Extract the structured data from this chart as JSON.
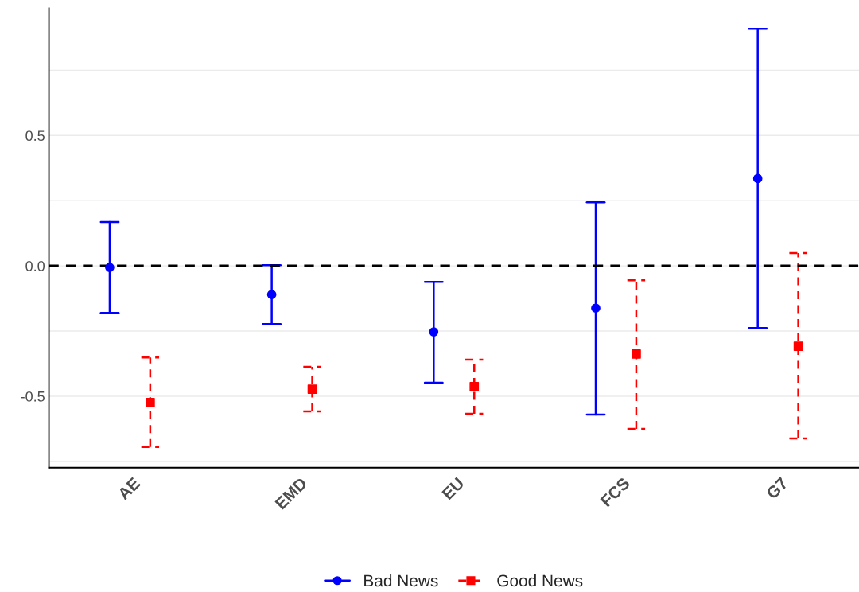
{
  "chart_data": {
    "type": "scatter",
    "categories": [
      "AE",
      "EMD",
      "EU",
      "FCS",
      "G7"
    ],
    "series": [
      {
        "name": "Bad News",
        "color": "#0000ff",
        "marker": "circle",
        "line_style": "solid",
        "values": [
          -0.006,
          -0.11,
          -0.253,
          -0.162,
          0.335
        ],
        "errors": [
          [
            -0.18,
            0.168
          ],
          [
            -0.223,
            0.003
          ],
          [
            -0.448,
            -0.061
          ],
          [
            -0.57,
            0.244
          ],
          [
            -0.238,
            0.909
          ]
        ]
      },
      {
        "name": "Good News",
        "color": "#ff0000",
        "marker": "square",
        "line_style": "dashed",
        "values": [
          -0.524,
          -0.473,
          -0.463,
          -0.338,
          -0.308
        ],
        "errors": [
          [
            -0.695,
            -0.351
          ],
          [
            -0.558,
            -0.387
          ],
          [
            -0.567,
            -0.36
          ],
          [
            -0.625,
            -0.055
          ],
          [
            -0.662,
            0.049
          ]
        ]
      }
    ],
    "ylim": [
      -0.774,
      0.988
    ],
    "yticks": [
      {
        "value": -0.75,
        "label": null
      },
      -0.5,
      {
        "value": -0.25,
        "label": null
      },
      {
        "value": 0,
        "label": "0.0"
      },
      {
        "value": 0.25,
        "label": null
      },
      0.5,
      {
        "value": 0.75,
        "label": null
      }
    ],
    "ref_lines": [
      {
        "axis": "y",
        "value": 0,
        "color": "#000000",
        "line_style": "dashed"
      }
    ],
    "grid": "y",
    "legend": "bottom"
  }
}
